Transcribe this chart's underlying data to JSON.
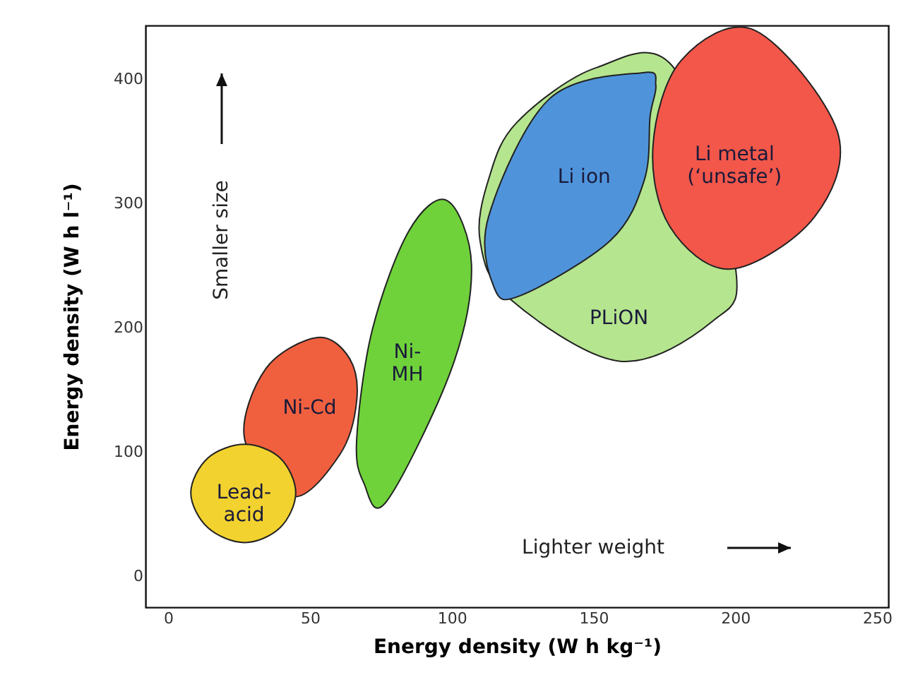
{
  "chart_data": {
    "type": "area",
    "xlabel": "Energy density (W h kg⁻¹)",
    "ylabel": "Energy density (W h l⁻¹)",
    "xlim": [
      -8,
      254
    ],
    "ylim": [
      -25,
      443
    ],
    "xticks": [
      0,
      50,
      100,
      150,
      200,
      250
    ],
    "yticks": [
      0,
      100,
      200,
      300,
      400
    ],
    "grid": false,
    "line_style": "solid",
    "series": [
      {
        "name": "Ni-Cd",
        "color": "#f0603f",
        "x": [
          66.5,
          64,
          52.7,
          34.5,
          27,
          44,
          60.6
        ],
        "values": [
          141,
          175,
          192,
          167,
          110,
          64,
          98
        ]
      },
      {
        "name": "Lead-\nacid",
        "color": "#f2d22e",
        "x": [
          45,
          39.5,
          27,
          14,
          8,
          14,
          27,
          39.5
        ],
        "values": [
          67,
          95,
          106,
          95,
          67,
          39,
          27,
          39
        ]
      },
      {
        "name": "Ni-\nMH",
        "color": "#6fd23a",
        "x": [
          107,
          98.5,
          85,
          72,
          66.5,
          69,
          77,
          100
        ],
        "values": [
          250,
          302,
          278,
          198,
          110,
          75,
          60,
          167
        ]
      },
      {
        "name": "PLiON",
        "color": "#b5e58e",
        "x": [
          200,
          179,
          151,
          123,
          113,
          110,
          120,
          159,
          192
        ],
        "values": [
          250,
          407,
          409,
          365,
          319,
          270,
          224,
          173,
          205
        ]
      },
      {
        "name": "Li ion",
        "color": "#4f94db",
        "x": [
          168,
          170,
          172,
          167.5,
          134.5,
          113,
          115,
          124.6,
          156
        ],
        "values": [
          319,
          370,
          395,
          405,
          384,
          289,
          232,
          226,
          270
        ]
      },
      {
        "name": "Li metal\n(‘unsafe’)",
        "color": "#f2574a",
        "x": [
          236,
          207,
          181,
          171,
          177,
          198.5,
          228
        ],
        "values": [
          358,
          439,
          415,
          346,
          281,
          247,
          289
        ]
      }
    ],
    "annotations": [
      "Smaller size",
      "Lighter weight"
    ]
  }
}
